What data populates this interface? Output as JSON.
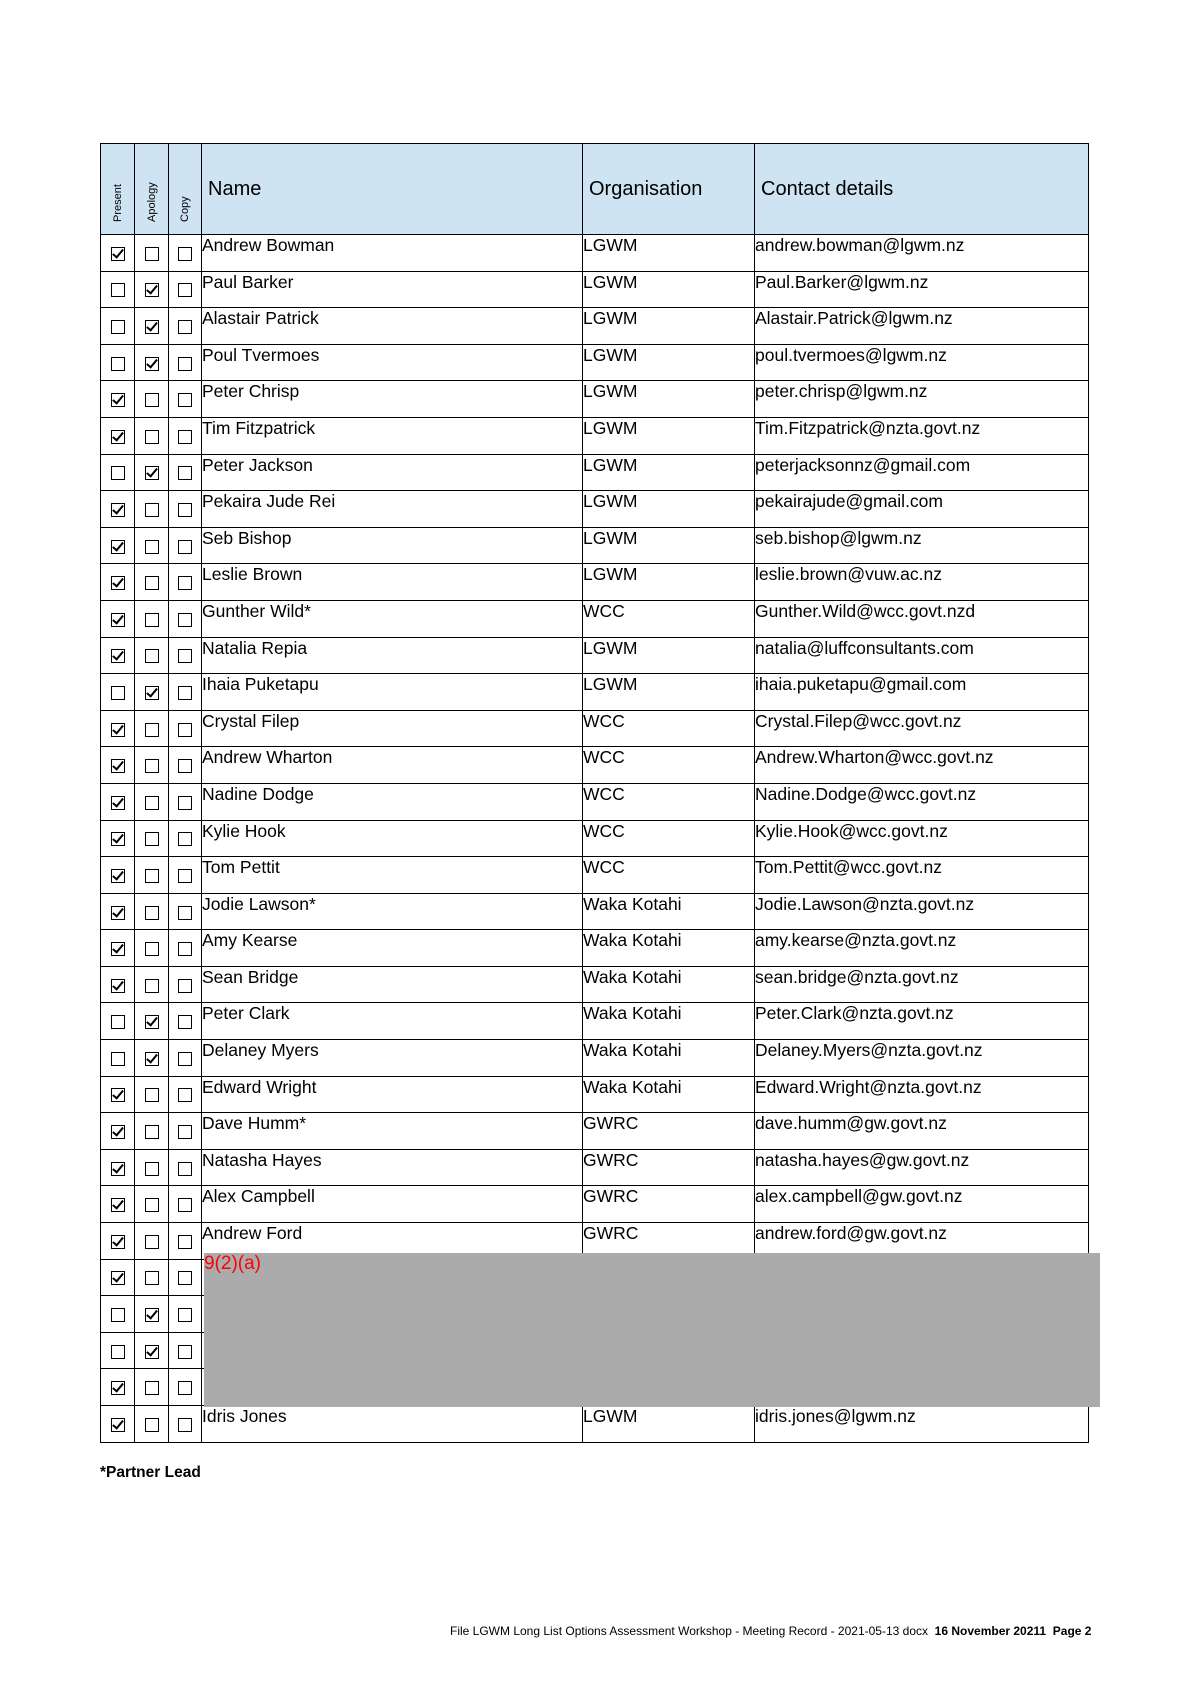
{
  "table": {
    "headers": {
      "present": "Present",
      "apology": "Apology",
      "copy": "Copy",
      "name": "Name",
      "organisation": "Organisation",
      "contact": "Contact details"
    },
    "rows": [
      {
        "present": true,
        "apology": false,
        "copy": false,
        "name": "Andrew Bowman",
        "organisation": "LGWM",
        "contact": "andrew.bowman@lgwm.nz"
      },
      {
        "present": false,
        "apology": true,
        "copy": false,
        "name": "Paul Barker",
        "organisation": "LGWM",
        "contact": "Paul.Barker@lgwm.nz"
      },
      {
        "present": false,
        "apology": true,
        "copy": false,
        "name": "Alastair Patrick",
        "organisation": "LGWM",
        "contact": "Alastair.Patrick@lgwm.nz"
      },
      {
        "present": false,
        "apology": true,
        "copy": false,
        "name": "Poul Tvermoes",
        "organisation": "LGWM",
        "contact": "poul.tvermoes@lgwm.nz"
      },
      {
        "present": true,
        "apology": false,
        "copy": false,
        "name": "Peter Chrisp",
        "organisation": "LGWM",
        "contact": "peter.chrisp@lgwm.nz"
      },
      {
        "present": true,
        "apology": false,
        "copy": false,
        "name": "Tim Fitzpatrick",
        "organisation": "LGWM",
        "contact": "Tim.Fitzpatrick@nzta.govt.nz"
      },
      {
        "present": false,
        "apology": true,
        "copy": false,
        "name": "Peter Jackson",
        "organisation": "LGWM",
        "contact": "peterjacksonnz@gmail.com"
      },
      {
        "present": true,
        "apology": false,
        "copy": false,
        "name": "Pekaira Jude Rei",
        "organisation": "LGWM",
        "contact": "pekairajude@gmail.com"
      },
      {
        "present": true,
        "apology": false,
        "copy": false,
        "name": "Seb Bishop",
        "organisation": "LGWM",
        "contact": "seb.bishop@lgwm.nz"
      },
      {
        "present": true,
        "apology": false,
        "copy": false,
        "name": "Leslie Brown",
        "organisation": "LGWM",
        "contact": "leslie.brown@vuw.ac.nz"
      },
      {
        "present": true,
        "apology": false,
        "copy": false,
        "name": "Gunther Wild*",
        "organisation": "WCC",
        "contact": "Gunther.Wild@wcc.govt.nzd"
      },
      {
        "present": true,
        "apology": false,
        "copy": false,
        "name": "Natalia Repia",
        "organisation": "LGWM",
        "contact": "natalia@luffconsultants.com"
      },
      {
        "present": false,
        "apology": true,
        "copy": false,
        "name": "Ihaia Puketapu",
        "organisation": "LGWM",
        "contact": "ihaia.puketapu@gmail.com"
      },
      {
        "present": true,
        "apology": false,
        "copy": false,
        "name": "Crystal Filep",
        "organisation": "WCC",
        "contact": "Crystal.Filep@wcc.govt.nz"
      },
      {
        "present": true,
        "apology": false,
        "copy": false,
        "name": "Andrew Wharton",
        "organisation": "WCC",
        "contact": "Andrew.Wharton@wcc.govt.nz"
      },
      {
        "present": true,
        "apology": false,
        "copy": false,
        "name": "Nadine Dodge",
        "organisation": "WCC",
        "contact": "Nadine.Dodge@wcc.govt.nz"
      },
      {
        "present": true,
        "apology": false,
        "copy": false,
        "name": "Kylie Hook",
        "organisation": "WCC",
        "contact": "Kylie.Hook@wcc.govt.nz"
      },
      {
        "present": true,
        "apology": false,
        "copy": false,
        "name": "Tom Pettit",
        "organisation": "WCC",
        "contact": "Tom.Pettit@wcc.govt.nz"
      },
      {
        "present": true,
        "apology": false,
        "copy": false,
        "name": "Jodie Lawson*",
        "organisation": "Waka Kotahi",
        "contact": "Jodie.Lawson@nzta.govt.nz"
      },
      {
        "present": true,
        "apology": false,
        "copy": false,
        "name": "Amy Kearse",
        "organisation": "Waka Kotahi",
        "contact": "amy.kearse@nzta.govt.nz"
      },
      {
        "present": true,
        "apology": false,
        "copy": false,
        "name": "Sean Bridge",
        "organisation": "Waka Kotahi",
        "contact": "sean.bridge@nzta.govt.nz"
      },
      {
        "present": false,
        "apology": true,
        "copy": false,
        "name": "Peter Clark",
        "organisation": "Waka Kotahi",
        "contact": "Peter.Clark@nzta.govt.nz"
      },
      {
        "present": false,
        "apology": true,
        "copy": false,
        "name": "Delaney Myers",
        "organisation": "Waka Kotahi",
        "contact": "Delaney.Myers@nzta.govt.nz"
      },
      {
        "present": true,
        "apology": false,
        "copy": false,
        "name": "Edward Wright",
        "organisation": "Waka Kotahi",
        "contact": "Edward.Wright@nzta.govt.nz"
      },
      {
        "present": true,
        "apology": false,
        "copy": false,
        "name": "Dave Humm*",
        "organisation": "GWRC",
        "contact": "dave.humm@gw.govt.nz"
      },
      {
        "present": true,
        "apology": false,
        "copy": false,
        "name": "Natasha Hayes",
        "organisation": "GWRC",
        "contact": "natasha.hayes@gw.govt.nz"
      },
      {
        "present": true,
        "apology": false,
        "copy": false,
        "name": "Alex Campbell",
        "organisation": "GWRC",
        "contact": "alex.campbell@gw.govt.nz"
      },
      {
        "present": true,
        "apology": false,
        "copy": false,
        "name": "Andrew Ford",
        "organisation": "GWRC",
        "contact": "andrew.ford@gw.govt.nz"
      },
      {
        "present": true,
        "apology": false,
        "copy": false,
        "name": "",
        "organisation": "",
        "contact": ""
      },
      {
        "present": false,
        "apology": true,
        "copy": false,
        "name": "",
        "organisation": "",
        "contact": ""
      },
      {
        "present": false,
        "apology": true,
        "copy": false,
        "name": "",
        "organisation": "",
        "contact": ""
      },
      {
        "present": true,
        "apology": false,
        "copy": false,
        "name": "",
        "organisation": "",
        "contact": ""
      },
      {
        "present": true,
        "apology": false,
        "copy": false,
        "name": "Idris Jones",
        "organisation": "LGWM",
        "contact": "idris.jones@lgwm.nz"
      }
    ]
  },
  "redaction": {
    "label": "9(2)(a)",
    "color": "#ababab",
    "label_color": "#ff0000"
  },
  "note": "*Partner Lead",
  "footer": {
    "file": "File LGWM Long List Options Assessment Workshop - Meeting Record - 2021-05-13 docx",
    "date": "16 November 20211",
    "page": "Page 2"
  },
  "colors": {
    "header_bg": "#cfe4f3"
  }
}
